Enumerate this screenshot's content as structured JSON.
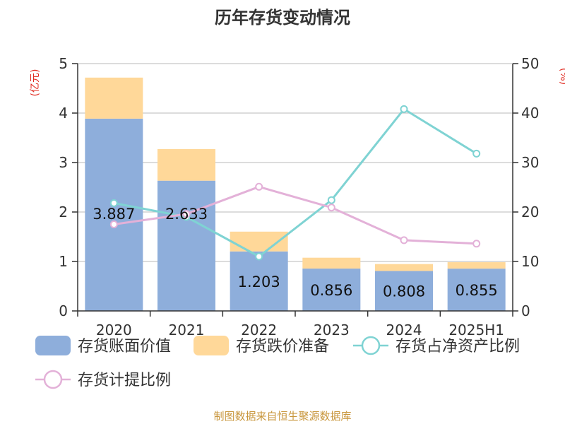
{
  "chart_data": {
    "type": "bar",
    "title": "历年存货变动情况",
    "categories": [
      "2020",
      "2021",
      "2022",
      "2023",
      "2024",
      "2025H1"
    ],
    "left_axis": {
      "unit": "(亿元)",
      "ylim": [
        0,
        5
      ],
      "ticks": [
        "0",
        "1",
        "2",
        "3",
        "4",
        "5"
      ]
    },
    "right_axis": {
      "unit": "(%)",
      "ylim": [
        0,
        50
      ],
      "ticks": [
        "0",
        "10",
        "20",
        "30",
        "40",
        "50"
      ]
    },
    "grid": true,
    "bars": {
      "stacked": true,
      "series": [
        {
          "name": "存货账面价值",
          "color": "#8eaedb",
          "values": [
            3.887,
            2.633,
            1.203,
            0.856,
            0.808,
            0.855
          ],
          "labels": [
            "3.887",
            "2.633",
            "1.203",
            "0.856",
            "0.808",
            "0.855"
          ]
        },
        {
          "name": "存货跌价准备",
          "color": "#ffd899",
          "values": [
            0.83,
            0.64,
            0.4,
            0.22,
            0.14,
            0.13
          ]
        }
      ]
    },
    "lines": [
      {
        "name": "存货占净资产比例",
        "color": "#7fd3d3",
        "axis": "right",
        "values": [
          21.8,
          19.0,
          11.0,
          22.4,
          40.8,
          31.8
        ]
      },
      {
        "name": "存货计提比例",
        "color": "#e3b1d8",
        "axis": "right",
        "values": [
          17.5,
          19.6,
          25.1,
          20.9,
          14.3,
          13.6
        ]
      }
    ],
    "legend_position": "bottom",
    "source": "制图数据来自恒生聚源数据库"
  }
}
